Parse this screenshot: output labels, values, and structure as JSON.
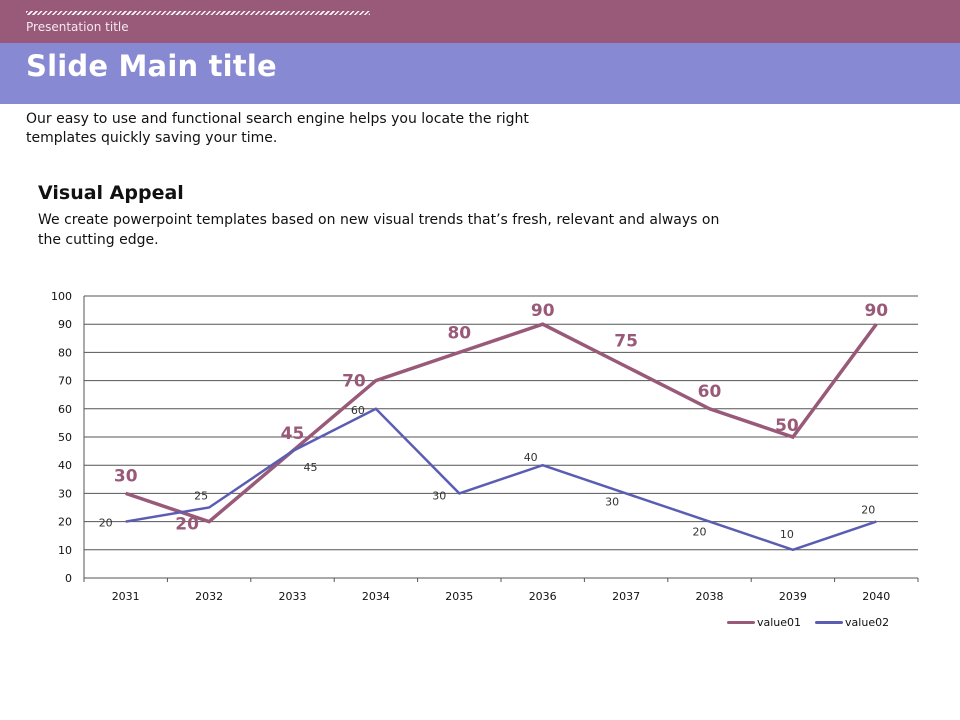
{
  "header": {
    "presentation_title": "Presentation title",
    "main_title": "Slide Main title"
  },
  "intro_text": "Our easy to use and functional search engine helps you locate the right templates quickly saving your time.",
  "section": {
    "title": "Visual Appeal",
    "body": "We create powerpoint templates based on new visual trends that’s fresh, relevant and always on the cutting edge."
  },
  "colors": {
    "top_band": "#985a78",
    "title_band": "#8789d2",
    "series1": "#985a78",
    "series2": "#5b5db3"
  },
  "chart_data": {
    "type": "line",
    "title": "",
    "xlabel": "",
    "ylabel": "",
    "categories": [
      "2031",
      "2032",
      "2033",
      "2034",
      "2035",
      "2036",
      "2037",
      "2038",
      "2039",
      "2040"
    ],
    "ylim": [
      0,
      100
    ],
    "yticks": [
      0,
      10,
      20,
      30,
      40,
      50,
      60,
      70,
      80,
      90,
      100
    ],
    "grid": true,
    "legend": "bottom-right",
    "series": [
      {
        "name": "value01",
        "values": [
          30,
          20,
          45,
          70,
          80,
          90,
          75,
          60,
          50,
          90
        ]
      },
      {
        "name": "value02",
        "values": [
          20,
          25,
          45,
          60,
          30,
          40,
          30,
          20,
          10,
          20
        ]
      }
    ]
  }
}
